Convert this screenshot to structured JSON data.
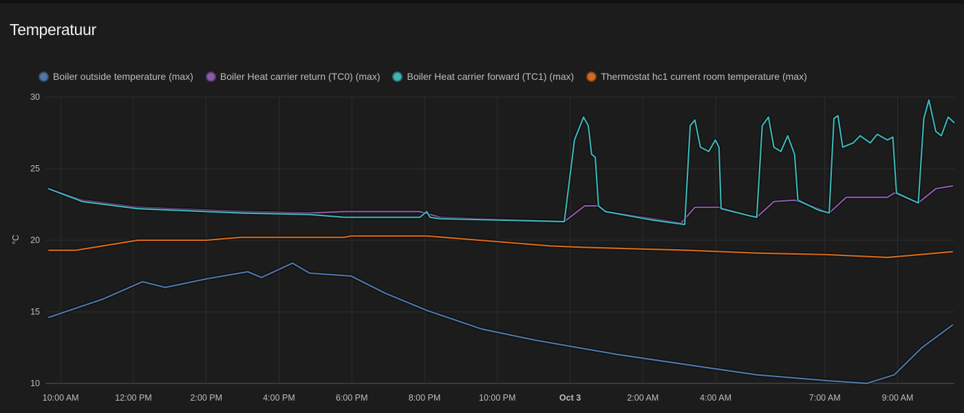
{
  "card": {
    "title": "Temperatuur"
  },
  "chart_data": {
    "type": "line",
    "title": "Temperatuur",
    "ylabel": "°C",
    "xlabel": "",
    "x_units": "hours since Oct 2 00:00",
    "xlim": [
      9.58,
      34.56
    ],
    "ylim": [
      10,
      30
    ],
    "yticks": [
      10,
      15,
      20,
      25,
      30
    ],
    "xticks": [
      {
        "x": 10,
        "label": "10:00 AM"
      },
      {
        "x": 12,
        "label": "12:00 PM"
      },
      {
        "x": 14,
        "label": "2:00 PM"
      },
      {
        "x": 16,
        "label": "4:00 PM"
      },
      {
        "x": 18,
        "label": "6:00 PM"
      },
      {
        "x": 20,
        "label": "8:00 PM"
      },
      {
        "x": 22,
        "label": "10:00 PM"
      },
      {
        "x": 24,
        "label": "Oct 3",
        "bold": true
      },
      {
        "x": 26,
        "label": "2:00 AM"
      },
      {
        "x": 28,
        "label": "4:00 AM"
      },
      {
        "x": 31,
        "label": "7:00 AM"
      },
      {
        "x": 33,
        "label": "9:00 AM"
      }
    ],
    "grid": true,
    "legend_position": "top",
    "series": [
      {
        "name": "Boiler outside temperature (max)",
        "color": "#4f77a8",
        "points": [
          [
            9.66,
            14.6
          ],
          [
            11.17,
            15.9
          ],
          [
            12.25,
            17.1
          ],
          [
            12.87,
            16.7
          ],
          [
            14.0,
            17.3
          ],
          [
            15.14,
            17.8
          ],
          [
            15.52,
            17.4
          ],
          [
            16.37,
            18.4
          ],
          [
            16.84,
            17.7
          ],
          [
            17.98,
            17.5
          ],
          [
            18.92,
            16.3
          ],
          [
            20.06,
            15.1
          ],
          [
            21.57,
            13.8
          ],
          [
            23.08,
            13.0
          ],
          [
            25.35,
            12.0
          ],
          [
            27.24,
            11.3
          ],
          [
            29.13,
            10.6
          ],
          [
            31.02,
            10.2
          ],
          [
            32.15,
            10.0
          ],
          [
            32.91,
            10.6
          ],
          [
            33.67,
            12.5
          ],
          [
            34.52,
            14.1
          ]
        ]
      },
      {
        "name": "Boiler Heat carrier return (TC0) (max)",
        "color": "#8d5aa8",
        "points": [
          [
            9.66,
            23.6
          ],
          [
            10.6,
            22.8
          ],
          [
            12.12,
            22.3
          ],
          [
            14.95,
            22.0
          ],
          [
            16.84,
            21.9
          ],
          [
            17.79,
            22.0
          ],
          [
            19.87,
            22.0
          ],
          [
            20.43,
            21.6
          ],
          [
            23.84,
            21.3
          ],
          [
            24.4,
            22.4
          ],
          [
            24.78,
            22.4
          ],
          [
            24.97,
            22.0
          ],
          [
            26.29,
            21.5
          ],
          [
            27.05,
            21.2
          ],
          [
            27.43,
            22.3
          ],
          [
            28.09,
            22.3
          ],
          [
            28.94,
            21.7
          ],
          [
            29.13,
            21.6
          ],
          [
            29.6,
            22.7
          ],
          [
            30.17,
            22.8
          ],
          [
            30.83,
            22.2
          ],
          [
            31.12,
            21.9
          ],
          [
            31.59,
            23.0
          ],
          [
            32.72,
            23.0
          ],
          [
            32.91,
            23.3
          ],
          [
            33.57,
            22.6
          ],
          [
            34.05,
            23.6
          ],
          [
            34.52,
            23.8
          ]
        ]
      },
      {
        "name": "Boiler Heat carrier forward (TC1) (max)",
        "color": "#3fb3b5",
        "points": [
          [
            9.66,
            23.6
          ],
          [
            10.6,
            22.7
          ],
          [
            12.12,
            22.2
          ],
          [
            14.95,
            21.9
          ],
          [
            16.84,
            21.8
          ],
          [
            17.79,
            21.6
          ],
          [
            19.87,
            21.6
          ],
          [
            20.06,
            22.0
          ],
          [
            20.15,
            21.6
          ],
          [
            20.43,
            21.5
          ],
          [
            23.84,
            21.3
          ],
          [
            24.12,
            27.0
          ],
          [
            24.37,
            28.6
          ],
          [
            24.5,
            28.0
          ],
          [
            24.59,
            26.0
          ],
          [
            24.69,
            25.8
          ],
          [
            24.78,
            22.4
          ],
          [
            24.97,
            22.0
          ],
          [
            26.29,
            21.4
          ],
          [
            27.15,
            21.1
          ],
          [
            27.3,
            28.0
          ],
          [
            27.43,
            28.4
          ],
          [
            27.58,
            26.5
          ],
          [
            27.81,
            26.2
          ],
          [
            27.99,
            27.0
          ],
          [
            28.09,
            26.5
          ],
          [
            28.15,
            22.2
          ],
          [
            28.94,
            21.7
          ],
          [
            29.13,
            21.6
          ],
          [
            29.28,
            28.0
          ],
          [
            29.45,
            28.6
          ],
          [
            29.6,
            26.5
          ],
          [
            29.79,
            26.2
          ],
          [
            29.98,
            27.3
          ],
          [
            30.17,
            26.0
          ],
          [
            30.26,
            22.8
          ],
          [
            30.83,
            22.1
          ],
          [
            31.12,
            21.9
          ],
          [
            31.25,
            28.5
          ],
          [
            31.36,
            28.7
          ],
          [
            31.49,
            26.5
          ],
          [
            31.78,
            26.8
          ],
          [
            31.97,
            27.3
          ],
          [
            32.25,
            26.8
          ],
          [
            32.44,
            27.4
          ],
          [
            32.72,
            27.0
          ],
          [
            32.87,
            27.2
          ],
          [
            32.97,
            23.3
          ],
          [
            33.57,
            22.6
          ],
          [
            33.72,
            28.5
          ],
          [
            33.86,
            29.8
          ],
          [
            34.05,
            27.6
          ],
          [
            34.2,
            27.3
          ],
          [
            34.39,
            28.6
          ],
          [
            34.56,
            28.2
          ]
        ]
      },
      {
        "name": "Thermostat hc1 current room temperature (max)",
        "color": "#d2691e",
        "points": [
          [
            9.66,
            19.3
          ],
          [
            10.42,
            19.3
          ],
          [
            12.12,
            20.0
          ],
          [
            14.0,
            20.0
          ],
          [
            14.95,
            20.2
          ],
          [
            17.79,
            20.2
          ],
          [
            17.98,
            20.3
          ],
          [
            20.06,
            20.3
          ],
          [
            23.46,
            19.6
          ],
          [
            24.4,
            19.5
          ],
          [
            27.24,
            19.3
          ],
          [
            29.13,
            19.1
          ],
          [
            31.02,
            19.0
          ],
          [
            32.72,
            18.8
          ],
          [
            34.52,
            19.2
          ]
        ]
      }
    ]
  }
}
